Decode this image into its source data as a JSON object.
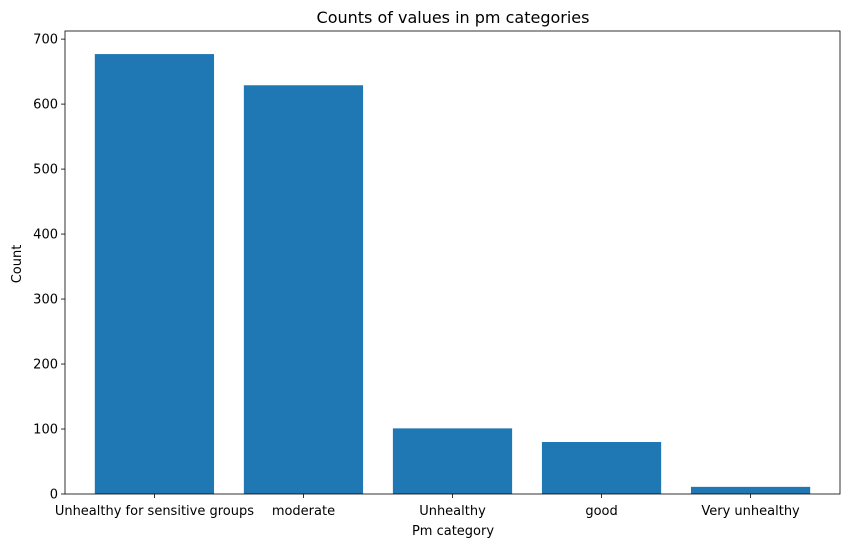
{
  "chart_data": {
    "type": "bar",
    "title": "Counts of values in pm categories",
    "xlabel": "Pm category",
    "ylabel": "Count",
    "categories": [
      "Unhealthy for sensitive groups",
      "moderate",
      "Unhealthy",
      "good",
      "Very unhealthy"
    ],
    "values": [
      677,
      629,
      101,
      80,
      11
    ],
    "ylim": [
      0,
      712.5
    ],
    "yticks": [
      0,
      100,
      200,
      300,
      400,
      500,
      600,
      700
    ],
    "grid": false,
    "bar_color": "#1f77b4"
  }
}
